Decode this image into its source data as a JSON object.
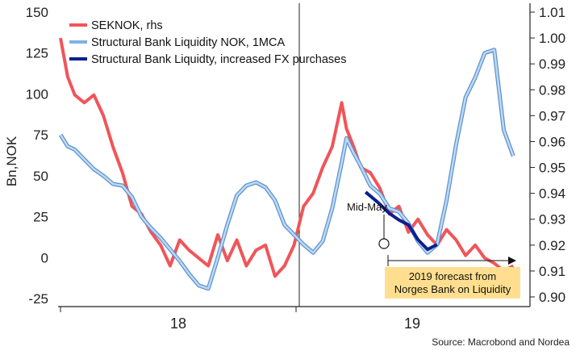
{
  "chart_data": {
    "type": "line",
    "ylabel": "Bn,NOK",
    "ylim_left": [
      -25,
      150
    ],
    "ylim_right": [
      0.9,
      1.01
    ],
    "left_ticks": [
      150,
      125,
      100,
      75,
      50,
      25,
      0,
      -25
    ],
    "right_ticks": [
      "1.01",
      "1.00",
      "0.99",
      "0.98",
      "0.97",
      "0.96",
      "0.95",
      "0.94",
      "0.93",
      "0.92",
      "0.91",
      "0.90"
    ],
    "categories": [
      "18",
      "19"
    ],
    "series": [
      {
        "name": "SEKNOK, rhs",
        "color": "#f0555a",
        "axis": "right",
        "x": [
          0.0,
          0.3,
          0.6,
          1.0,
          1.4,
          1.8,
          2.2,
          2.6,
          3.0,
          3.4,
          3.8,
          4.2,
          4.6,
          5.0,
          5.4,
          5.8,
          6.2,
          6.6,
          7.0,
          7.4,
          7.8,
          8.2,
          8.6,
          9.0,
          9.4,
          9.8,
          10.2,
          10.6,
          11.0,
          11.4,
          11.8,
          12.0,
          12.3,
          12.6,
          13.0,
          13.4,
          13.8,
          14.2,
          14.6,
          15.0,
          15.4,
          15.8,
          16.2,
          16.6,
          17.0,
          17.4,
          17.8,
          18.2,
          18.6,
          19.0
        ],
        "values": [
          1.0,
          0.985,
          0.978,
          0.975,
          0.978,
          0.97,
          0.958,
          0.948,
          0.935,
          0.932,
          0.925,
          0.92,
          0.912,
          0.922,
          0.918,
          0.915,
          0.912,
          0.924,
          0.914,
          0.922,
          0.912,
          0.918,
          0.92,
          0.908,
          0.912,
          0.92,
          0.935,
          0.94,
          0.95,
          0.958,
          0.975,
          0.965,
          0.958,
          0.95,
          0.948,
          0.942,
          0.932,
          0.935,
          0.925,
          0.93,
          0.924,
          0.92,
          0.926,
          0.922,
          0.916,
          0.92,
          0.915,
          0.913,
          0.91,
          0.912
        ]
      },
      {
        "name": "Structural Bank Liquidity NOK, 1MCA",
        "color": "#7fb2e5",
        "axis": "left",
        "x": [
          0.0,
          0.3,
          0.6,
          1.0,
          1.4,
          1.8,
          2.2,
          2.6,
          3.0,
          3.4,
          3.8,
          4.2,
          4.6,
          5.0,
          5.4,
          5.8,
          6.2,
          6.6,
          7.0,
          7.4,
          7.8,
          8.2,
          8.6,
          9.0,
          9.4,
          9.8,
          10.2,
          10.6,
          11.0,
          11.4,
          11.8,
          12.0,
          12.3,
          12.6,
          13.0,
          13.4,
          13.8,
          14.2,
          14.6,
          15.0,
          15.4,
          15.8,
          16.2,
          16.6,
          17.0,
          17.4,
          17.8,
          18.2,
          18.6,
          19.0
        ],
        "values": [
          75,
          68,
          66,
          60,
          54,
          50,
          45,
          44,
          37,
          25,
          18,
          12,
          5,
          -2,
          -10,
          -17,
          -19,
          0,
          20,
          38,
          44,
          46,
          43,
          35,
          20,
          14,
          8,
          3,
          10,
          30,
          58,
          73,
          64,
          56,
          44,
          39,
          30,
          28,
          21,
          10,
          3,
          8,
          35,
          69,
          98,
          110,
          125,
          127,
          78,
          62
        ],
        "x_forecast_start": 14.2
      },
      {
        "name": "Structural Bank Liquidty, increased FX purchases",
        "color": "#0a1f8f",
        "axis": "left",
        "x": [
          12.8,
          13.3,
          13.8,
          14.2,
          14.6,
          15.0,
          15.4,
          15.8
        ],
        "values": [
          40,
          34,
          27,
          23,
          20,
          11,
          5,
          8
        ]
      }
    ],
    "annotations": [
      {
        "text": "Mid-May",
        "x": 15.8,
        "y": 8
      },
      {
        "text": "2019 forecast from",
        "text2": "Norges Bank on Liquidity"
      }
    ],
    "source": "Source: Macrobond and Nordea",
    "grid": false,
    "legend_position": "top-left"
  }
}
